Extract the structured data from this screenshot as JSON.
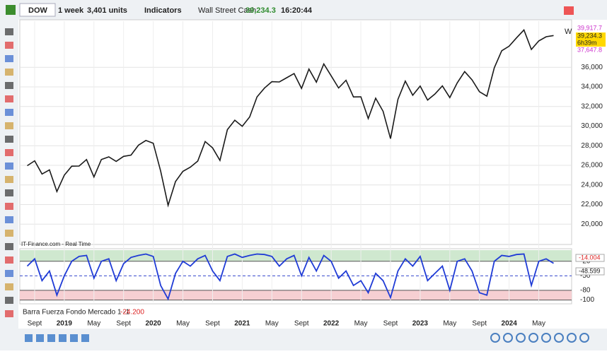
{
  "toolbar": {
    "symbol": "DOW",
    "timeframe": "1 week",
    "units": "3,401 units",
    "indicators": "Indicators",
    "instrument": "Wall Street Cash",
    "price": "39,234.3",
    "time": "16:20:44"
  },
  "chart_data": [
    {
      "type": "line",
      "source": "IT-Finance.com - Real Time",
      "period": "W",
      "price_labels": [
        "39,917.7",
        "39,234.3",
        "6h39m",
        "37,647.8"
      ],
      "x": [
        "2018-08",
        "2018-09",
        "2018-10",
        "2018-11",
        "2018-12",
        "2019-01",
        "2019-02",
        "2019-03",
        "2019-04",
        "2019-05",
        "2019-06",
        "2019-07",
        "2019-08",
        "2019-09",
        "2019-10",
        "2019-11",
        "2019-12",
        "2020-01",
        "2020-02",
        "2020-03",
        "2020-04",
        "2020-05",
        "2020-06",
        "2020-07",
        "2020-08",
        "2020-09",
        "2020-10",
        "2020-11",
        "2020-12",
        "2021-01",
        "2021-02",
        "2021-03",
        "2021-04",
        "2021-05",
        "2021-06",
        "2021-07",
        "2021-08",
        "2021-09",
        "2021-10",
        "2021-11",
        "2021-12",
        "2022-01",
        "2022-02",
        "2022-03",
        "2022-04",
        "2022-05",
        "2022-06",
        "2022-07",
        "2022-08",
        "2022-09",
        "2022-10",
        "2022-11",
        "2022-12",
        "2023-01",
        "2023-02",
        "2023-03",
        "2023-04",
        "2023-05",
        "2023-06",
        "2023-07",
        "2023-08",
        "2023-09",
        "2023-10",
        "2023-11",
        "2023-12",
        "2024-01",
        "2024-02",
        "2024-03",
        "2024-04",
        "2024-05",
        "2024-06",
        "2024-07"
      ],
      "series": [
        {
          "name": "Wall Street Cash",
          "color": "#1a1a1a",
          "values": [
            25965,
            26458,
            25116,
            25538,
            23327,
            24999,
            25916,
            25929,
            26593,
            24815,
            26600,
            26864,
            26403,
            26917,
            27046,
            28051,
            28538,
            28256,
            25409,
            21917,
            24346,
            25383,
            25813,
            26428,
            28430,
            27782,
            26502,
            29639,
            30606,
            29983,
            30932,
            32981,
            33875,
            34529,
            34503,
            34935,
            35361,
            33844,
            35820,
            34484,
            36338,
            35132,
            33893,
            34678,
            32977,
            32990,
            30775,
            32845,
            31510,
            28726,
            32733,
            34590,
            33147,
            34086,
            32657,
            33274,
            34098,
            32908,
            34408,
            35560,
            34722,
            33508,
            33053,
            35951,
            37690,
            38150,
            38996,
            39807,
            37816,
            38686,
            39118,
            39234
          ]
        }
      ],
      "xlim": [
        "2018-07",
        "2024-08"
      ],
      "xticks": [
        {
          "value": "2018-09",
          "label": "Sept"
        },
        {
          "value": "2019-01",
          "label": "2019"
        },
        {
          "value": "2019-05",
          "label": "May"
        },
        {
          "value": "2019-09",
          "label": "Sept"
        },
        {
          "value": "2020-01",
          "label": "2020"
        },
        {
          "value": "2020-05",
          "label": "May"
        },
        {
          "value": "2020-09",
          "label": "Sept"
        },
        {
          "value": "2021-01",
          "label": "2021"
        },
        {
          "value": "2021-05",
          "label": "May"
        },
        {
          "value": "2021-09",
          "label": "Sept"
        },
        {
          "value": "2022-01",
          "label": "2022"
        },
        {
          "value": "2022-05",
          "label": "May"
        },
        {
          "value": "2022-09",
          "label": "Sept"
        },
        {
          "value": "2023-01",
          "label": "2023"
        },
        {
          "value": "2023-05",
          "label": "May"
        },
        {
          "value": "2023-09",
          "label": "Sept"
        },
        {
          "value": "2024-01",
          "label": "2024"
        },
        {
          "value": "2024-05",
          "label": "May"
        }
      ],
      "ylim": [
        18000,
        40700
      ],
      "yticks": [
        {
          "value": 20000,
          "label": "20,000"
        },
        {
          "value": 22000,
          "label": "22,000"
        },
        {
          "value": 24000,
          "label": "24,000"
        },
        {
          "value": 26000,
          "label": "26,000"
        },
        {
          "value": 28000,
          "label": "28,000"
        },
        {
          "value": 30000,
          "label": "30,000"
        },
        {
          "value": 32000,
          "label": "32,000"
        },
        {
          "value": 34000,
          "label": "34,000"
        },
        {
          "value": 36000,
          "label": "36,000"
        }
      ],
      "grid": true
    },
    {
      "type": "line",
      "title": "Barra Fuerza Fondo Mercado 1 -1",
      "last_label": "-24.200",
      "side_labels": [
        "-14.004",
        "-48.599"
      ],
      "series": [
        {
          "name": "Barra Fuerza Fondo Mercado",
          "color": "#1f3bd6",
          "values": [
            -30,
            -15,
            -60,
            -40,
            -90,
            -50,
            -20,
            -10,
            -8,
            -55,
            -20,
            -15,
            -60,
            -25,
            -12,
            -8,
            -5,
            -10,
            -70,
            -98,
            -45,
            -20,
            -30,
            -15,
            -8,
            -40,
            -60,
            -10,
            -5,
            -12,
            -8,
            -5,
            -6,
            -10,
            -30,
            -15,
            -8,
            -50,
            -12,
            -40,
            -8,
            -20,
            -55,
            -40,
            -70,
            -60,
            -85,
            -45,
            -60,
            -95,
            -40,
            -15,
            -30,
            -10,
            -60,
            -45,
            -30,
            -80,
            -20,
            -15,
            -40,
            -85,
            -90,
            -20,
            -8,
            -10,
            -6,
            -5,
            -70,
            -20,
            -15,
            -24.2
          ]
        }
      ],
      "ylim": [
        -105,
        3
      ],
      "yticks": [
        -20,
        -50,
        -80,
        -100
      ]
    }
  ]
}
